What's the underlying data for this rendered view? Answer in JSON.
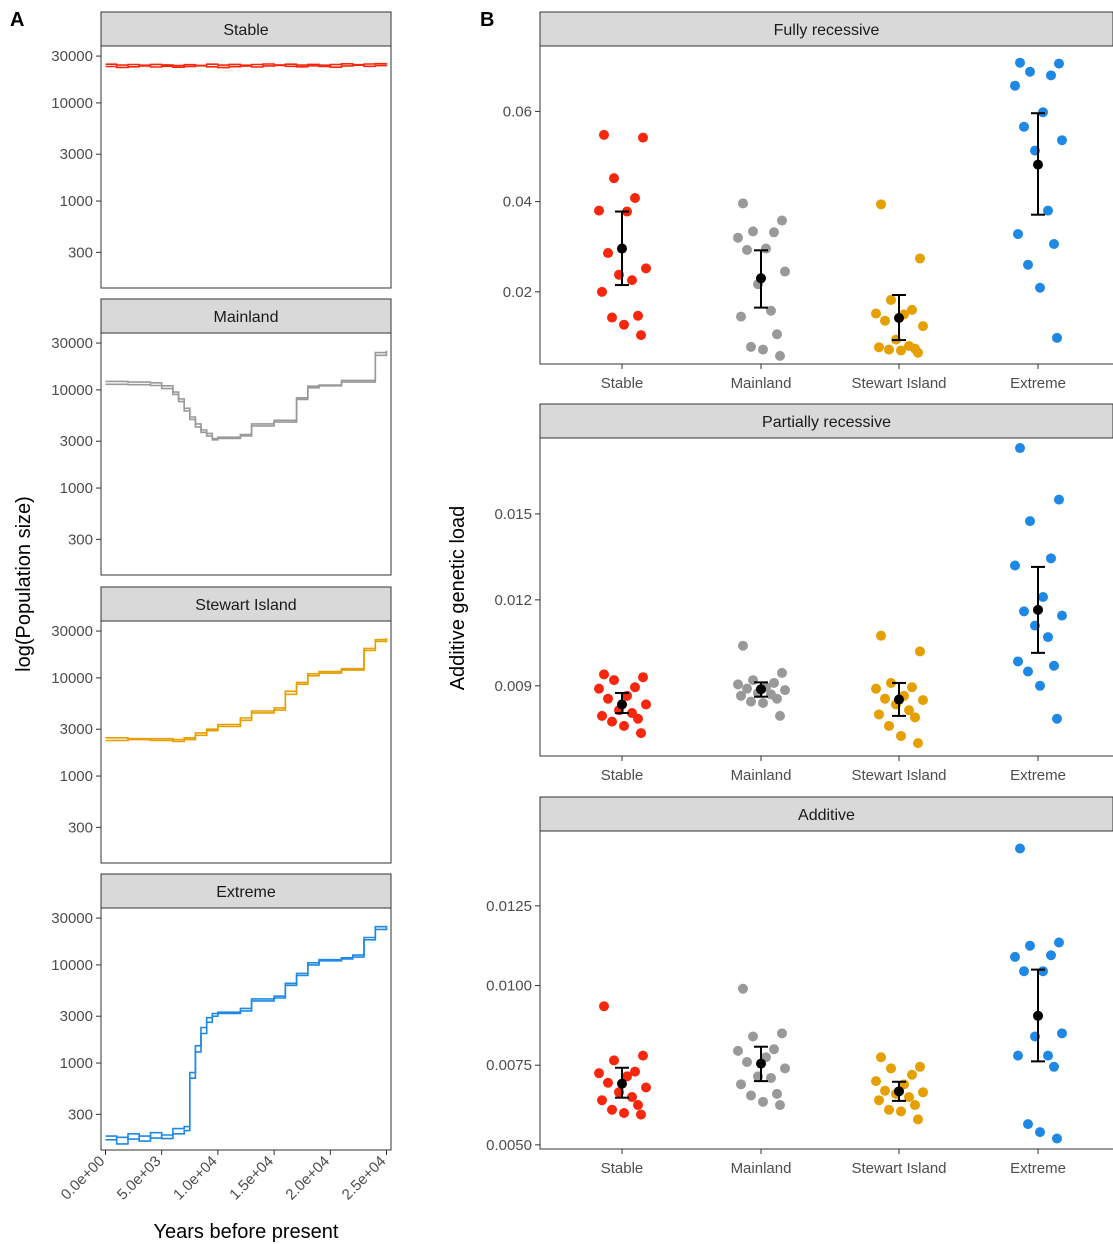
{
  "panel_labels": [
    "A",
    "B"
  ],
  "chart_data": [
    {
      "type": "line",
      "panel": "A",
      "xlabel": "Years before present",
      "ylabel": "log(Population size)",
      "y_scale": "log10",
      "ylim": [
        130,
        38000
      ],
      "xlim": [
        -400,
        25400
      ],
      "x_ticks": [
        0,
        5000,
        10000,
        15000,
        20000,
        25000
      ],
      "x_tick_labels": [
        "0.0e+00",
        "5.0e+03",
        "1.0e+04",
        "1.5e+04",
        "2.0e+04",
        "2.5e+04"
      ],
      "y_ticks": [
        300,
        1000,
        3000,
        10000,
        30000
      ],
      "y_tick_labels": [
        "300",
        "1000",
        "3000",
        "10000",
        "30000"
      ],
      "facets": [
        {
          "name": "Stable",
          "color": "#F8270C",
          "lines": [
            {
              "x": [
                0,
                1000,
                2000,
                3000,
                4000,
                5000,
                6000,
                7000,
                8000,
                9000,
                10000,
                11000,
                12000,
                13000,
                14000,
                15000,
                16000,
                17000,
                18000,
                19000,
                20000,
                21000,
                22000,
                23000,
                24000,
                25000
              ],
              "y": [
                23500,
                23000,
                23300,
                23800,
                23200,
                23600,
                23100,
                23500,
                23900,
                23300,
                22900,
                23400,
                23700,
                23200,
                23800,
                24100,
                23600,
                23300,
                23900,
                23500,
                23100,
                23800,
                24200,
                23600,
                24000,
                24200
              ]
            },
            {
              "x": [
                0,
                1000,
                2000,
                3000,
                4000,
                5000,
                6000,
                7000,
                8000,
                9000,
                10000,
                11000,
                12000,
                13000,
                14000,
                15000,
                16000,
                17000,
                18000,
                19000,
                20000,
                21000,
                22000,
                23000,
                24000,
                25000
              ],
              "y": [
                24800,
                24300,
                24600,
                24200,
                24700,
                24400,
                24000,
                24500,
                24100,
                24800,
                24300,
                24700,
                24200,
                24600,
                24900,
                24400,
                24800,
                24300,
                24700,
                24200,
                24600,
                25000,
                24500,
                24900,
                25100,
                25300
              ]
            }
          ]
        },
        {
          "name": "Mainland",
          "color": "#999999",
          "lines": [
            {
              "x": [
                0,
                2000,
                4000,
                5000,
                6000,
                6500,
                7000,
                7500,
                8000,
                8500,
                9000,
                9500,
                10000,
                12000,
                13000,
                15000,
                17000,
                18000,
                19000,
                21000,
                24000,
                25000
              ],
              "y": [
                11400,
                11300,
                11100,
                10300,
                9000,
                7600,
                6100,
                5000,
                4200,
                3700,
                3400,
                3200,
                3300,
                3500,
                4300,
                4700,
                8000,
                10500,
                11000,
                12000,
                22500,
                23500
              ]
            },
            {
              "x": [
                0,
                2000,
                4000,
                5000,
                6000,
                6500,
                7000,
                7500,
                8000,
                8500,
                9000,
                9500,
                10000,
                12000,
                13000,
                15000,
                17000,
                18000,
                19000,
                21000,
                24000,
                25000
              ],
              "y": [
                12200,
                12000,
                11800,
                11000,
                9500,
                8100,
                6500,
                5300,
                4500,
                3900,
                3600,
                3100,
                3200,
                3400,
                4500,
                4900,
                8300,
                10900,
                11200,
                12500,
                24000,
                25000
              ]
            }
          ]
        },
        {
          "name": "Stewart Island",
          "color": "#E69F00",
          "lines": [
            {
              "x": [
                0,
                2000,
                4000,
                6000,
                7000,
                8000,
                9000,
                10000,
                12000,
                13000,
                15000,
                16000,
                17000,
                18000,
                19000,
                21000,
                23000,
                24000,
                25000
              ],
              "y": [
                2300,
                2350,
                2300,
                2250,
                2350,
                2600,
                2900,
                3200,
                3700,
                4400,
                4700,
                6800,
                8600,
                10500,
                11200,
                12000,
                19000,
                23500,
                24500
              ]
            },
            {
              "x": [
                0,
                2000,
                4000,
                6000,
                7000,
                8000,
                9000,
                10000,
                12000,
                13000,
                15000,
                16000,
                17000,
                18000,
                19000,
                21000,
                23000,
                24000,
                25000
              ],
              "y": [
                2450,
                2400,
                2400,
                2350,
                2450,
                2750,
                3000,
                3350,
                3900,
                4600,
                4950,
                7300,
                9000,
                11000,
                11600,
                12400,
                20000,
                24500,
                25500
              ]
            }
          ]
        },
        {
          "name": "Extreme",
          "color": "#1E88E5",
          "lines": [
            {
              "x": [
                0,
                1000,
                2000,
                3000,
                4000,
                5000,
                6000,
                7000,
                7500,
                8000,
                8500,
                9000,
                9500,
                10000,
                12000,
                13000,
                15000,
                16000,
                17000,
                18000,
                19000,
                21000,
                22000,
                23000,
                24000,
                25000
              ],
              "y": [
                165,
                175,
                168,
                180,
                172,
                185,
                190,
                205,
                700,
                1300,
                2000,
                2600,
                3000,
                3200,
                3400,
                4300,
                4600,
                6200,
                7800,
                10000,
                11000,
                11500,
                12000,
                18000,
                23000,
                24000
              ]
            },
            {
              "x": [
                0,
                1000,
                2000,
                3000,
                4000,
                5000,
                6000,
                7000,
                7500,
                8000,
                8500,
                9000,
                9500,
                10000,
                12000,
                13000,
                15000,
                16000,
                17000,
                18000,
                19000,
                21000,
                22000,
                23000,
                24000,
                25000
              ],
              "y": [
                180,
                150,
                190,
                160,
                195,
                170,
                215,
                225,
                800,
                1500,
                2300,
                2900,
                3200,
                3300,
                3600,
                4500,
                4800,
                6500,
                8200,
                10500,
                11300,
                11800,
                12600,
                19000,
                24500,
                25000
              ]
            }
          ]
        }
      ]
    },
    {
      "type": "scatter",
      "panel": "B",
      "ylabel": "Additive genetic load",
      "categories": [
        "Stable",
        "Mainland",
        "Stewart Island",
        "Extreme"
      ],
      "colors": [
        "#F8270C",
        "#999999",
        "#E69F00",
        "#1E88E5"
      ],
      "summary_color": "#000000",
      "facets": [
        {
          "name": "Fully recessive",
          "ylim": [
            0.004,
            0.0745
          ],
          "y_ticks": [
            0.02,
            0.04,
            0.06
          ],
          "y_tick_labels": [
            "0.02",
            "0.04",
            "0.06"
          ],
          "points": [
            [
              0.0548,
              0.0542,
              0.0452,
              0.0408,
              0.038,
              0.0378,
              0.0286,
              0.0252,
              0.0238,
              0.0226,
              0.02,
              0.0147,
              0.0143,
              0.0127,
              0.0104
            ],
            [
              0.0396,
              0.0358,
              0.0334,
              0.0332,
              0.032,
              0.0296,
              0.0293,
              0.0245,
              0.0217,
              0.0158,
              0.0145,
              0.0106,
              0.0078,
              0.0072,
              0.0058
            ],
            [
              0.0394,
              0.0274,
              0.0182,
              0.016,
              0.0152,
              0.015,
              0.0136,
              0.0124,
              0.0094,
              0.008,
              0.0077,
              0.0074,
              0.0072,
              0.007,
              0.0065
            ],
            [
              0.0708,
              0.0706,
              0.0688,
              0.068,
              0.0657,
              0.0598,
              0.0566,
              0.0536,
              0.0513,
              0.038,
              0.0328,
              0.0306,
              0.026,
              0.0209,
              0.0098
            ]
          ],
          "mean": [
            0.0296,
            0.023,
            0.0142,
            0.0482
          ],
          "ci_low": [
            0.0215,
            0.0165,
            0.0093,
            0.0371
          ],
          "ci_high": [
            0.0378,
            0.0292,
            0.0193,
            0.0596
          ]
        },
        {
          "name": "Partially recessive",
          "ylim": [
            0.00655,
            0.01765
          ],
          "y_ticks": [
            0.009,
            0.012,
            0.015
          ],
          "y_tick_labels": [
            "0.009",
            "0.012",
            "0.015"
          ],
          "points": [
            [
              0.0094,
              0.0093,
              0.0092,
              0.00895,
              0.0089,
              0.00865,
              0.00855,
              0.00835,
              0.00815,
              0.00805,
              0.00795,
              0.00785,
              0.00775,
              0.0076,
              0.00735
            ],
            [
              0.0104,
              0.00945,
              0.0092,
              0.0091,
              0.00905,
              0.00895,
              0.0089,
              0.00885,
              0.00875,
              0.0087,
              0.00865,
              0.00855,
              0.00845,
              0.0084,
              0.00795
            ],
            [
              0.01075,
              0.0102,
              0.0091,
              0.00895,
              0.0089,
              0.00865,
              0.00855,
              0.0085,
              0.00835,
              0.00815,
              0.008,
              0.0079,
              0.0076,
              0.00725,
              0.007
            ],
            [
              0.0173,
              0.0155,
              0.01475,
              0.01345,
              0.0132,
              0.0121,
              0.0116,
              0.01145,
              0.0111,
              0.0107,
              0.00985,
              0.0097,
              0.0095,
              0.009,
              0.00785
            ]
          ],
          "mean": [
            0.00835,
            0.00888,
            0.00852,
            0.01165
          ],
          "ci_low": [
            0.00805,
            0.00862,
            0.00795,
            0.01015
          ],
          "ci_high": [
            0.00875,
            0.00912,
            0.0091,
            0.01315
          ]
        },
        {
          "name": "Additive",
          "ylim": [
            0.00487,
            0.01485
          ],
          "y_ticks": [
            0.005,
            0.0075,
            0.01,
            0.0125
          ],
          "y_tick_labels": [
            "0.0050",
            "0.0075",
            "0.0100",
            "0.0125"
          ],
          "points": [
            [
              0.00935,
              0.0078,
              0.00765,
              0.0073,
              0.00725,
              0.00715,
              0.00695,
              0.0068,
              0.00665,
              0.0065,
              0.0064,
              0.00625,
              0.0061,
              0.006,
              0.00595
            ],
            [
              0.0099,
              0.0085,
              0.0084,
              0.008,
              0.00795,
              0.00775,
              0.0076,
              0.0074,
              0.00715,
              0.0071,
              0.0069,
              0.0066,
              0.00655,
              0.00635,
              0.00625
            ],
            [
              0.00775,
              0.00745,
              0.0074,
              0.0072,
              0.007,
              0.0069,
              0.0067,
              0.00665,
              0.0066,
              0.0065,
              0.0064,
              0.00625,
              0.0061,
              0.00605,
              0.0058
            ],
            [
              0.0143,
              0.01135,
              0.01125,
              0.01095,
              0.0109,
              0.01045,
              0.01045,
              0.0085,
              0.0084,
              0.0078,
              0.0078,
              0.00745,
              0.00565,
              0.0054,
              0.0052
            ]
          ],
          "mean": [
            0.00692,
            0.00755,
            0.00668,
            0.00905
          ],
          "ci_low": [
            0.00648,
            0.007,
            0.00638,
            0.00762
          ],
          "ci_high": [
            0.00742,
            0.00808,
            0.00698,
            0.0105
          ]
        }
      ]
    }
  ]
}
